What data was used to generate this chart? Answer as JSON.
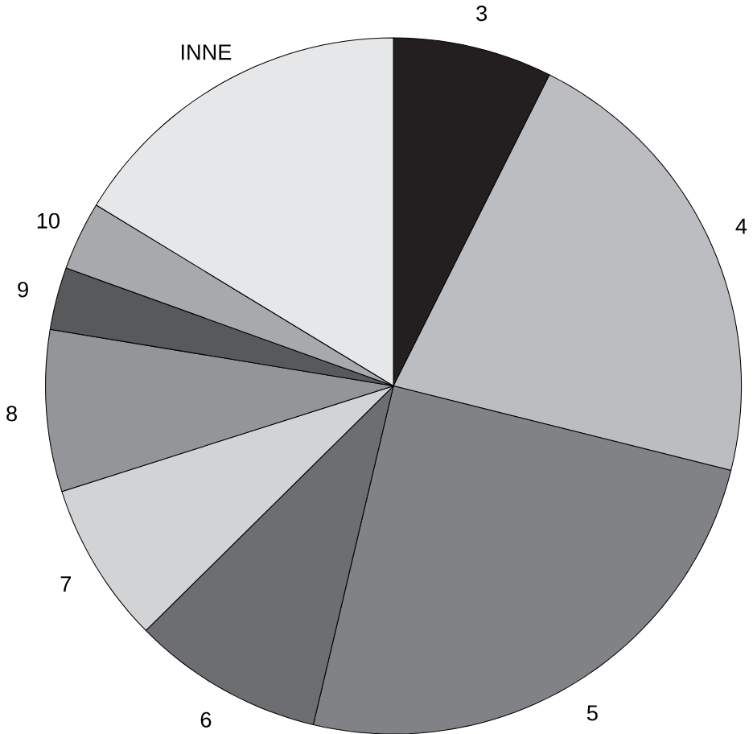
{
  "chart_data": {
    "type": "pie",
    "categories": [
      "3",
      "4",
      "5",
      "6",
      "7",
      "8",
      "9",
      "10",
      "INNE"
    ],
    "values": [
      7.4,
      21.5,
      24.8,
      8.9,
      7.5,
      7.5,
      2.9,
      3.2,
      16.3
    ],
    "colors": [
      "#231f20",
      "#bcbdc0",
      "#808285",
      "#6d6e71",
      "#d1d3d4",
      "#939598",
      "#58595b",
      "#a7a9ac",
      "#e6e7e8"
    ]
  }
}
